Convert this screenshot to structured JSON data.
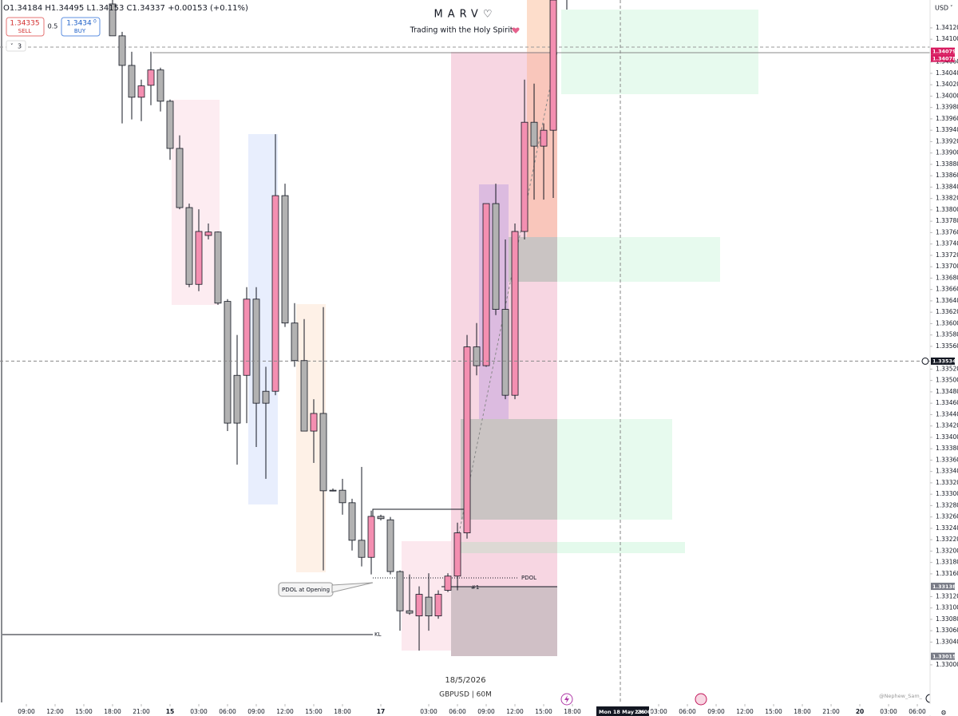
{
  "header": {
    "ohlc": "O1.34184 H1.34495 L1.34153 C1.34337 +0.00153 (+0.11%)",
    "sell_price": "1.34335",
    "sell": "SELL",
    "spread": "0.5",
    "buy_price": "1.3434",
    "buy_price_small": "0",
    "buy": "BUY",
    "indicator_count": "3"
  },
  "watermark": {
    "title": "MARV♡",
    "subtitle": "Trading with the Holy Spirit",
    "date": "18/5/2026",
    "symbol": "GBPUSD | 60M",
    "credit": "@Nephew_Sam_"
  },
  "annotations": {
    "pdol": "PDOL",
    "pdol_opening": "PDOL at Opening",
    "kl": "KL",
    "level": "#1"
  },
  "chart_data": {
    "type": "candlestick",
    "currency": "USD",
    "grid": false,
    "up_color": "#f48fb1",
    "down_color": "#b2b2b2",
    "x": [
      9,
      10,
      11,
      12,
      13,
      14,
      15,
      16,
      17,
      18,
      19,
      20,
      21,
      22,
      23,
      24,
      25,
      26,
      27,
      28,
      29,
      30,
      31,
      32,
      33,
      34,
      35,
      36,
      37,
      38,
      39,
      40,
      41,
      42,
      43,
      44,
      45,
      46,
      47,
      48,
      49,
      50,
      51,
      52,
      53,
      54,
      55
    ],
    "open": [
      1.34162,
      1.34106,
      1.34054,
      1.33998,
      1.34019,
      1.34046,
      1.33991,
      1.33908,
      1.33804,
      1.33669,
      1.33755,
      1.33761,
      1.33639,
      1.33509,
      1.33509,
      1.33643,
      1.33481,
      1.33481,
      1.33825,
      1.33601,
      1.33535,
      1.33411,
      1.33442,
      1.33307,
      1.33307,
      1.33285,
      1.33219,
      1.33189,
      1.33261,
      1.33255,
      1.33164,
      1.33095,
      1.33086,
      1.33119,
      1.33086,
      1.33131,
      1.33156,
      1.33232,
      1.33559,
      1.33526,
      1.33811,
      1.33625,
      1.33474,
      1.33762,
      1.33954,
      1.33912,
      1.3394
    ],
    "high": [
      1.34197,
      1.34113,
      1.34078,
      1.34029,
      1.34078,
      1.3405,
      1.33994,
      1.33931,
      1.33811,
      1.33801,
      1.33776,
      1.33762,
      1.33643,
      1.3358,
      1.33664,
      1.33664,
      1.33524,
      1.33933,
      1.33846,
      1.33636,
      1.33608,
      1.33467,
      1.33629,
      1.3331,
      1.33327,
      1.33292,
      1.33348,
      1.33271,
      1.33264,
      1.3326,
      1.33166,
      1.33159,
      1.33138,
      1.33161,
      1.33131,
      1.33161,
      1.3325,
      1.3358,
      1.33601,
      1.33811,
      1.33846,
      1.33748,
      1.33776,
      1.34029,
      1.34022,
      1.33952,
      1.342
    ],
    "low": [
      1.34106,
      1.33952,
      1.33959,
      1.33956,
      1.33984,
      1.33973,
      1.33888,
      1.33801,
      1.33664,
      1.33657,
      1.33748,
      1.33633,
      1.33411,
      1.33352,
      1.33425,
      1.33383,
      1.33327,
      1.33474,
      1.33594,
      1.33524,
      1.33411,
      1.33355,
      1.33166,
      1.33305,
      1.33264,
      1.33201,
      1.33173,
      1.33159,
      1.33254,
      1.33159,
      1.3306,
      1.33088,
      1.33025,
      1.3306,
      1.33081,
      1.33128,
      1.33131,
      1.33222,
      1.33509,
      1.33524,
      1.33615,
      1.33467,
      1.33467,
      1.33748,
      1.33818,
      1.33818,
      1.33821
    ],
    "close": [
      1.34106,
      1.34054,
      1.33998,
      1.34018,
      1.34046,
      1.33991,
      1.33908,
      1.33804,
      1.33669,
      1.33762,
      1.33761,
      1.33636,
      1.33425,
      1.33425,
      1.33643,
      1.3346,
      1.3346,
      1.33825,
      1.33601,
      1.33535,
      1.33411,
      1.33442,
      1.33306,
      1.33306,
      1.33285,
      1.33219,
      1.33189,
      1.33261,
      1.33257,
      1.33164,
      1.33095,
      1.33091,
      1.33124,
      1.33086,
      1.33124,
      1.33156,
      1.33232,
      1.33559,
      1.33526,
      1.33811,
      1.33625,
      1.33474,
      1.33762,
      1.33954,
      1.33912,
      1.3394,
      1.34169
    ],
    "xlim": [
      -2.75,
      94.33
    ],
    "xticks": [
      {
        "value": 0,
        "label": "09:00"
      },
      {
        "value": 3,
        "label": "12:00"
      },
      {
        "value": 6,
        "label": "15:00"
      },
      {
        "value": 9,
        "label": "18:00"
      },
      {
        "value": 12,
        "label": "21:00"
      },
      15,
      {
        "value": 18,
        "label": "03:00"
      },
      {
        "value": 21,
        "label": "06:00"
      },
      {
        "value": 24,
        "label": "09:00"
      },
      {
        "value": 27,
        "label": "12:00"
      },
      {
        "value": 30,
        "label": "15:00"
      },
      {
        "value": 33,
        "label": "18:00"
      },
      {
        "value": 37,
        "label": "17"
      },
      {
        "value": 42,
        "label": "03:00"
      },
      {
        "value": 45,
        "label": "06:00"
      },
      {
        "value": 48,
        "label": "09:00"
      },
      {
        "value": 51,
        "label": "12:00"
      },
      {
        "value": 54,
        "label": "15:00"
      },
      {
        "value": 57,
        "label": "18:00"
      },
      {
        "value": 66,
        "label": "03:00"
      },
      {
        "value": 69,
        "label": "06:00"
      },
      {
        "value": 72,
        "label": "09:00"
      },
      {
        "value": 75,
        "label": "12:00"
      },
      {
        "value": 78,
        "label": "15:00"
      },
      {
        "value": 81,
        "label": "18:00"
      },
      {
        "value": 84,
        "label": "21:00"
      },
      {
        "value": 87,
        "label": "20"
      },
      {
        "value": 90,
        "label": "03:00"
      },
      {
        "value": 93,
        "label": "06:00"
      }
    ],
    "ylim": [
      1.32983,
      1.34169
    ],
    "yticks": [
      {
        "value": 1.3412,
        "label": "1.34120"
      },
      {
        "value": 1.341,
        "label": "1.34100"
      },
      {
        "value": 1.3406,
        "label": "1.34060"
      },
      {
        "value": 1.3404,
        "label": "1.34040"
      },
      {
        "value": 1.3402,
        "label": "1.34020"
      },
      {
        "value": 1.34,
        "label": "1.34000"
      },
      {
        "value": 1.3398,
        "label": "1.33980"
      },
      {
        "value": 1.3396,
        "label": "1.33960"
      },
      {
        "value": 1.3394,
        "label": "1.33940"
      },
      {
        "value": 1.3392,
        "label": "1.33920"
      },
      {
        "value": 1.339,
        "label": "1.33900"
      },
      {
        "value": 1.3388,
        "label": "1.33880"
      },
      {
        "value": 1.3386,
        "label": "1.33860"
      },
      {
        "value": 1.3384,
        "label": "1.33840"
      },
      {
        "value": 1.3382,
        "label": "1.33820"
      },
      {
        "value": 1.338,
        "label": "1.33800"
      },
      {
        "value": 1.3378,
        "label": "1.33780"
      },
      {
        "value": 1.3376,
        "label": "1.33760"
      },
      {
        "value": 1.3374,
        "label": "1.33740"
      },
      {
        "value": 1.3372,
        "label": "1.33720"
      },
      {
        "value": 1.337,
        "label": "1.33700"
      },
      {
        "value": 1.3368,
        "label": "1.33680"
      },
      {
        "value": 1.3366,
        "label": "1.33660"
      },
      {
        "value": 1.3364,
        "label": "1.33640"
      },
      {
        "value": 1.3362,
        "label": "1.33620"
      },
      {
        "value": 1.336,
        "label": "1.33600"
      },
      {
        "value": 1.3358,
        "label": "1.33580"
      },
      {
        "value": 1.3356,
        "label": "1.33560"
      },
      {
        "value": 1.3352,
        "label": "1.33520"
      },
      {
        "value": 1.335,
        "label": "1.33500"
      },
      {
        "value": 1.3348,
        "label": "1.33480"
      },
      {
        "value": 1.3346,
        "label": "1.33460"
      },
      {
        "value": 1.3344,
        "label": "1.33440"
      },
      {
        "value": 1.3342,
        "label": "1.33420"
      },
      {
        "value": 1.334,
        "label": "1.33400"
      },
      {
        "value": 1.3338,
        "label": "1.33380"
      },
      {
        "value": 1.3336,
        "label": "1.33360"
      },
      {
        "value": 1.3334,
        "label": "1.33340"
      },
      {
        "value": 1.3332,
        "label": "1.33320"
      },
      {
        "value": 1.333,
        "label": "1.33300"
      },
      {
        "value": 1.3328,
        "label": "1.33280"
      },
      {
        "value": 1.3326,
        "label": "1.33260"
      },
      {
        "value": 1.3324,
        "label": "1.33240"
      },
      {
        "value": 1.3322,
        "label": "1.33220"
      },
      {
        "value": 1.332,
        "label": "1.33200"
      },
      {
        "value": 1.3318,
        "label": "1.33180"
      },
      {
        "value": 1.3316,
        "label": "1.33160"
      },
      {
        "value": 1.3312,
        "label": "1.33120"
      },
      {
        "value": 1.331,
        "label": "1.33100"
      },
      {
        "value": 1.3308,
        "label": "1.33080"
      },
      {
        "value": 1.3306,
        "label": "1.33060"
      },
      {
        "value": 1.3304,
        "label": "1.33040"
      },
      {
        "value": 1.33,
        "label": "1.33000"
      }
    ],
    "price_labels": [
      {
        "value": 1.34079,
        "label": "1.34079",
        "color": "#d81b60"
      },
      {
        "value": 1.34078,
        "label": "1.34078",
        "color": "#d81b60"
      },
      {
        "value": 1.33534,
        "label": "1.33534",
        "color": "#131722"
      },
      {
        "value": 1.33138,
        "label": "1.33138",
        "color": "#787b86"
      },
      {
        "value": 1.33015,
        "label": "1.33015",
        "color": "#787b86"
      }
    ],
    "crosshair_x": 62,
    "crosshair_date": "Mon 18 May '26",
    "crosshair_time": "23:00"
  }
}
